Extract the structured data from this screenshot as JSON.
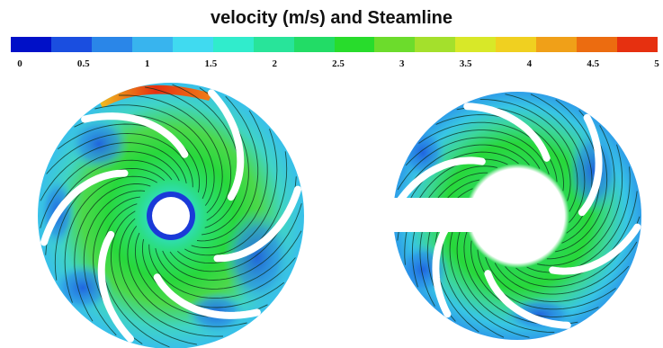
{
  "title": "velocity (m/s) and Steamline",
  "legend": {
    "tick_labels": [
      "0",
      "0.5",
      "1",
      "1.5",
      "2",
      "2.5",
      "3",
      "3.5",
      "4",
      "4.5",
      "5"
    ],
    "min": 0,
    "max": 5,
    "colors": [
      "#0010c8",
      "#1a4ee0",
      "#2a86e8",
      "#38b4ee",
      "#40daf0",
      "#30eccc",
      "#28e49a",
      "#22dc66",
      "#28dc2c",
      "#6cdc2c",
      "#a4e02c",
      "#d8e828",
      "#f0d020",
      "#f0a018",
      "#ec6c10",
      "#e63010"
    ]
  },
  "impellers": [
    {
      "name": "full impeller",
      "blades": 6
    },
    {
      "name": "cut impeller",
      "blades": 6
    }
  ]
}
